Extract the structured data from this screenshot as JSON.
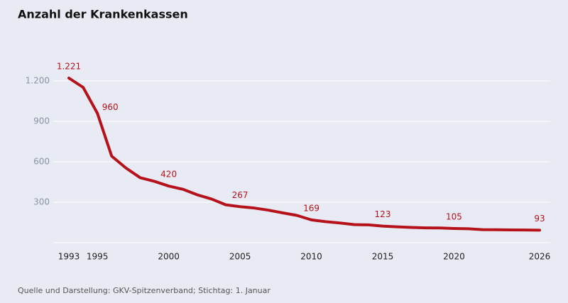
{
  "chart_data": {
    "type": "line",
    "title": "Anzahl der Krankenkassen",
    "source": "Quelle und Darstellung: GKV-Spitzenverband; Stichtag: 1. Januar",
    "x": [
      1993,
      1994,
      1995,
      1996,
      1997,
      1998,
      1999,
      2000,
      2001,
      2002,
      2003,
      2004,
      2005,
      2006,
      2007,
      2008,
      2009,
      2010,
      2011,
      2012,
      2013,
      2014,
      2015,
      2016,
      2017,
      2018,
      2019,
      2020,
      2021,
      2022,
      2023,
      2024,
      2025,
      2026
    ],
    "values": [
      1221,
      1152,
      960,
      642,
      554,
      482,
      455,
      420,
      396,
      355,
      324,
      281,
      267,
      257,
      241,
      221,
      202,
      169,
      156,
      146,
      134,
      132,
      123,
      118,
      113,
      110,
      109,
      105,
      103,
      97,
      96,
      95,
      94,
      93
    ],
    "value_labels": [
      "1.221",
      null,
      "960",
      null,
      null,
      null,
      null,
      "420",
      null,
      null,
      null,
      null,
      "267",
      null,
      null,
      null,
      null,
      "169",
      null,
      null,
      null,
      null,
      "123",
      null,
      null,
      null,
      null,
      "105",
      null,
      null,
      null,
      null,
      null,
      "93"
    ],
    "color": "#b5121b",
    "xlim": [
      1993,
      2026
    ],
    "xticks": [
      1993,
      1995,
      2000,
      2005,
      2010,
      2015,
      2020,
      2026
    ],
    "ylim": [
      0,
      1300
    ],
    "yticks": [
      300,
      600,
      900,
      {
        "value": 1200,
        "label": "1.200"
      }
    ],
    "grid": true
  }
}
